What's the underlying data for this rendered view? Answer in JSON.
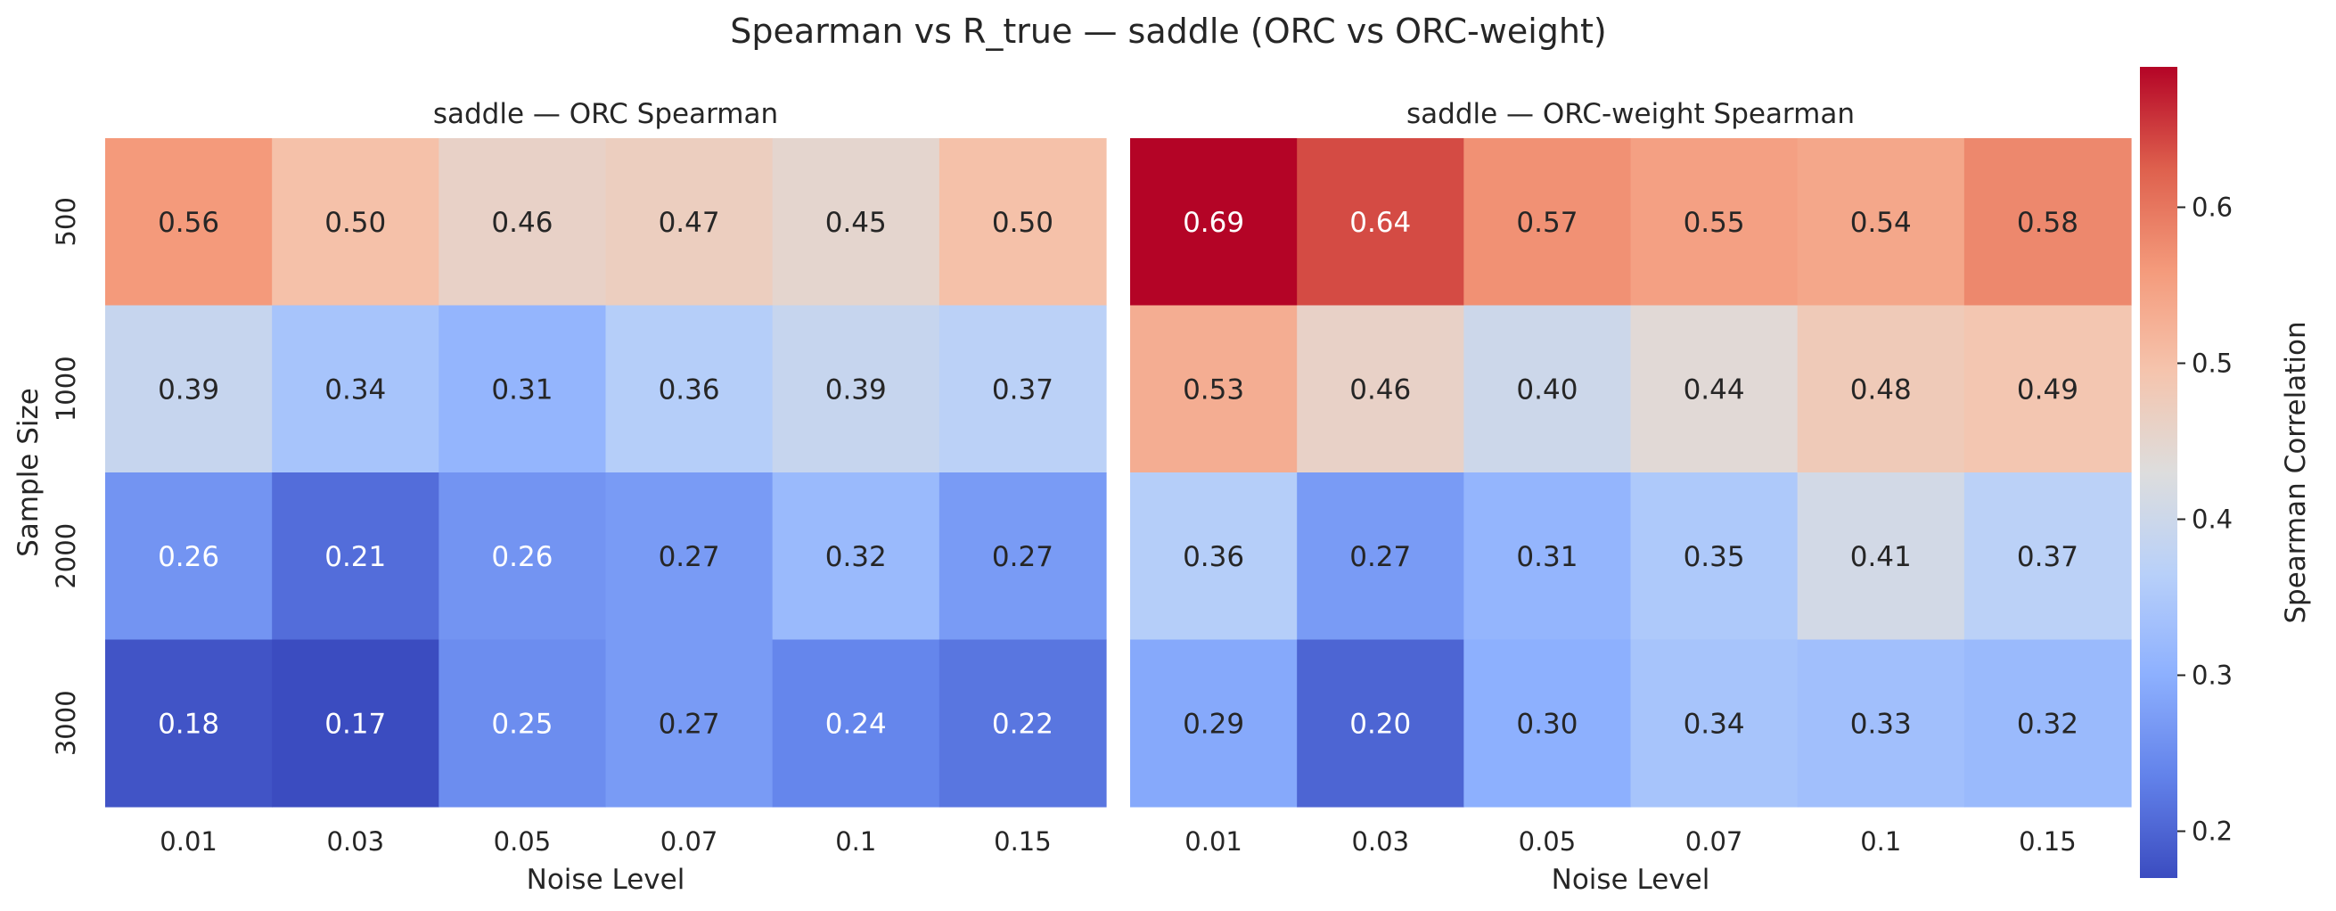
{
  "figure": {
    "title": "Spearman vs R_true — saddle (ORC vs ORC-weight)"
  },
  "chart_data": [
    {
      "type": "heatmap",
      "title": "saddle — ORC Spearman",
      "xlabel": "Noise Level",
      "ylabel": "Sample Size",
      "x": [
        "0.01",
        "0.03",
        "0.05",
        "0.07",
        "0.1",
        "0.15"
      ],
      "y": [
        "500",
        "1000",
        "2000",
        "3000"
      ],
      "values": [
        [
          0.56,
          0.5,
          0.46,
          0.47,
          0.45,
          0.5
        ],
        [
          0.39,
          0.34,
          0.31,
          0.36,
          0.39,
          0.37
        ],
        [
          0.26,
          0.21,
          0.26,
          0.27,
          0.32,
          0.27
        ],
        [
          0.18,
          0.17,
          0.25,
          0.27,
          0.24,
          0.22
        ]
      ]
    },
    {
      "type": "heatmap",
      "title": "saddle — ORC-weight Spearman",
      "xlabel": "Noise Level",
      "ylabel": "",
      "x": [
        "0.01",
        "0.03",
        "0.05",
        "0.07",
        "0.1",
        "0.15"
      ],
      "y": [
        "500",
        "1000",
        "2000",
        "3000"
      ],
      "values": [
        [
          0.69,
          0.64,
          0.57,
          0.55,
          0.54,
          0.58
        ],
        [
          0.53,
          0.46,
          0.4,
          0.44,
          0.48,
          0.49
        ],
        [
          0.36,
          0.27,
          0.31,
          0.35,
          0.41,
          0.37
        ],
        [
          0.29,
          0.2,
          0.3,
          0.34,
          0.33,
          0.32
        ]
      ]
    }
  ],
  "colorbar": {
    "label": "Spearman Correlation",
    "colormap": "coolwarm",
    "range": [
      0.17,
      0.69
    ],
    "ticks": [
      0.2,
      0.3,
      0.4,
      0.5,
      0.6
    ],
    "tick_labels": [
      "0.2",
      "0.3",
      "0.4",
      "0.5",
      "0.6"
    ]
  }
}
